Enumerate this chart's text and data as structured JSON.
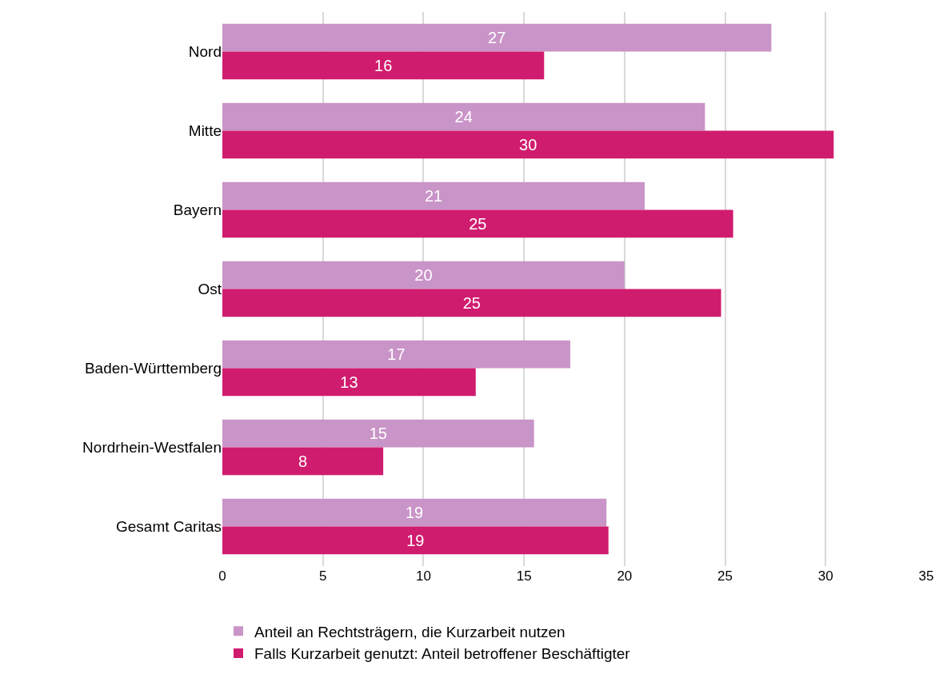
{
  "chart_data": {
    "type": "bar",
    "orientation": "horizontal",
    "categories": [
      "Nord",
      "Mitte",
      "Bayern",
      "Ost",
      "Baden-Württemberg",
      "Nordrhein-Westfalen",
      "Gesamt Caritas"
    ],
    "series": [
      {
        "name": "Anteil an Rechtsträgern, die Kurzarbeit nutzen",
        "color": "#c994c7",
        "values": [
          27.3,
          24.0,
          21.0,
          20.0,
          17.3,
          15.5,
          19.1
        ],
        "value_labels": [
          "27",
          "24",
          "21",
          "20",
          "17",
          "15",
          "19"
        ]
      },
      {
        "name": "Falls Kurzarbeit genutzt: Anteil betroffener Beschäftigter",
        "color": "#d01c6e",
        "values": [
          16.0,
          30.4,
          25.4,
          24.8,
          12.6,
          8.0,
          19.2
        ],
        "value_labels": [
          "16",
          "30",
          "25",
          "25",
          "13",
          "8",
          "19"
        ]
      }
    ],
    "xlim": [
      0,
      35
    ],
    "xticks": [
      0,
      5,
      10,
      15,
      20,
      25,
      30,
      35
    ],
    "grid": "x",
    "legend": "bottom"
  }
}
